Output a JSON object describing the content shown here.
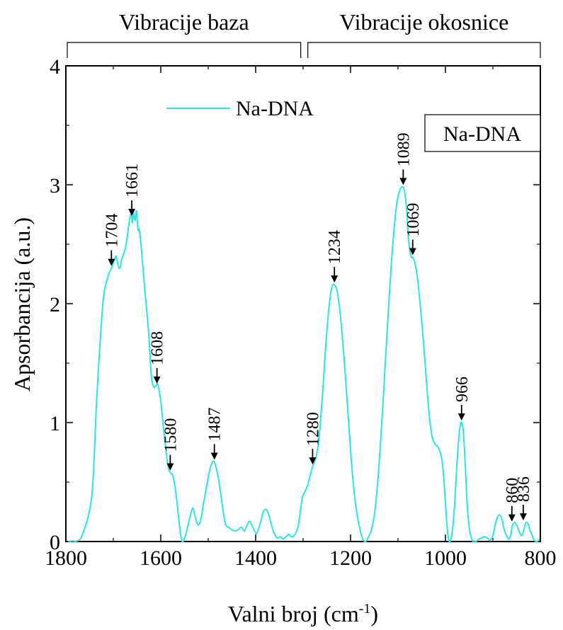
{
  "chart_data": {
    "type": "line",
    "xlabel": "Valni broj (cm",
    "xlabel_sup": "-1",
    "xlabel_close": ")",
    "ylabel": "Apsorbancija (a.u.)",
    "xlim": [
      1800,
      800
    ],
    "ylim": [
      0,
      4
    ],
    "x_ticks": [
      1800,
      1600,
      1400,
      1200,
      1000,
      800
    ],
    "y_ticks": [
      0,
      1,
      2,
      3,
      4
    ],
    "x_tick_labels": [
      "1800",
      "1600",
      "1400",
      "1200",
      "1000",
      "800"
    ],
    "y_tick_labels": [
      "0",
      "1",
      "2",
      "3",
      "4"
    ],
    "grid": false,
    "legend_position": "top-left",
    "legend": [
      {
        "name": "Na-DNA",
        "color": "#29e6e6"
      }
    ],
    "box_label": "Na-DNA",
    "groups": [
      {
        "label": "Vibracije baza",
        "from": 1800,
        "to": 1305
      },
      {
        "label": "Vibracije okosnice",
        "from": 1290,
        "to": 800
      }
    ],
    "series": [
      {
        "name": "Na-DNA",
        "color": "#29e6e6",
        "x": [
          1795,
          1780,
          1765,
          1745,
          1735,
          1722,
          1712,
          1706,
          1702,
          1698,
          1694,
          1690,
          1686,
          1682,
          1678,
          1674,
          1670,
          1666,
          1662,
          1660,
          1657,
          1654,
          1651,
          1648,
          1645,
          1640,
          1635,
          1630,
          1625,
          1620,
          1615,
          1610,
          1606,
          1600,
          1595,
          1590,
          1585,
          1580,
          1575,
          1570,
          1565,
          1560,
          1555,
          1548,
          1540,
          1533,
          1528,
          1522,
          1516,
          1510,
          1504,
          1498,
          1492,
          1487,
          1483,
          1478,
          1473,
          1468,
          1463,
          1457,
          1450,
          1443,
          1437,
          1430,
          1424,
          1419,
          1413,
          1406,
          1398,
          1390,
          1384,
          1378,
          1372,
          1366,
          1360,
          1354,
          1348,
          1342,
          1336,
          1330,
          1324,
          1317,
          1310,
          1302,
          1296,
          1290,
          1285,
          1280,
          1276,
          1272,
          1268,
          1264,
          1258,
          1252,
          1246,
          1240,
          1234,
          1228,
          1222,
          1216,
          1210,
          1204,
          1198,
          1192,
          1186,
          1180,
          1174,
          1168,
          1162,
          1156,
          1150,
          1144,
          1138,
          1132,
          1126,
          1120,
          1114,
          1108,
          1102,
          1096,
          1092,
          1089,
          1086,
          1082,
          1078,
          1073,
          1069,
          1064,
          1058,
          1052,
          1046,
          1040,
          1034,
          1028,
          1022,
          1016,
          1012,
          1008,
          1004,
          1000,
          996,
          992,
          988,
          984,
          980,
          976,
          972,
          969,
          966,
          963,
          960,
          957,
          954,
          950,
          946,
          942,
          936,
          930,
          924,
          918,
          912,
          906,
          900,
          894,
          888,
          882,
          876,
          870,
          866,
          862,
          860,
          857,
          854,
          850,
          846,
          842,
          839,
          836,
          833,
          830,
          826,
          822,
          818,
          814,
          810,
          806,
          802
        ],
        "y": [
          0,
          0,
          0.06,
          0.4,
          1.2,
          2.0,
          2.22,
          2.28,
          2.32,
          2.36,
          2.4,
          2.32,
          2.3,
          2.38,
          2.42,
          2.48,
          2.58,
          2.7,
          2.76,
          2.68,
          2.76,
          2.7,
          2.78,
          2.62,
          2.62,
          2.42,
          2.18,
          1.96,
          1.72,
          1.4,
          1.3,
          1.31,
          1.32,
          1.18,
          0.98,
          0.8,
          0.64,
          0.58,
          0.56,
          0.46,
          0.3,
          0.12,
          0,
          0.05,
          0.18,
          0.28,
          0.22,
          0.14,
          0.18,
          0.32,
          0.45,
          0.58,
          0.66,
          0.67,
          0.62,
          0.52,
          0.38,
          0.24,
          0.14,
          0.12,
          0.1,
          0.09,
          0.1,
          0.12,
          0.09,
          0.13,
          0.17,
          0.12,
          0.07,
          0.16,
          0.25,
          0.27,
          0.22,
          0.13,
          0.06,
          0.03,
          0.04,
          0.02,
          0.04,
          0.06,
          0.04,
          0.06,
          0.14,
          0.36,
          0.42,
          0.48,
          0.56,
          0.63,
          0.67,
          0.72,
          0.82,
          0.98,
          1.3,
          1.66,
          1.95,
          2.13,
          2.16,
          2.1,
          1.92,
          1.66,
          1.34,
          1.0,
          0.66,
          0.4,
          0.22,
          0.1,
          0.02,
          0,
          0.04,
          0.1,
          0.22,
          0.44,
          0.76,
          1.14,
          1.56,
          1.96,
          2.34,
          2.64,
          2.86,
          2.96,
          2.98,
          2.98,
          2.94,
          2.8,
          2.55,
          2.4,
          2.39,
          2.34,
          2.18,
          1.94,
          1.66,
          1.34,
          1.06,
          0.88,
          0.82,
          0.8,
          0.76,
          0.7,
          0.56,
          0.32,
          0.1,
          0,
          0.03,
          0.14,
          0.36,
          0.64,
          0.86,
          0.98,
          1.0,
          0.95,
          0.78,
          0.54,
          0.3,
          0.12,
          0.04,
          0,
          0,
          0.02,
          0.03,
          0.04,
          0.03,
          0.01,
          0.05,
          0.16,
          0.22,
          0.2,
          0.1,
          0.04,
          0.02,
          0.06,
          0.12,
          0.15,
          0.16,
          0.14,
          0.1,
          0.06,
          0.05,
          0.08,
          0.13,
          0.16,
          0.15,
          0.1,
          0.06,
          0.02,
          0,
          0,
          0.02
        ]
      }
    ],
    "annotations": [
      {
        "label": "1704",
        "x": 1704,
        "y": 2.3
      },
      {
        "label": "1661",
        "x": 1661,
        "y": 2.72
      },
      {
        "label": "1608",
        "x": 1608,
        "y": 1.31
      },
      {
        "label": "1580",
        "x": 1580,
        "y": 0.58
      },
      {
        "label": "1487",
        "x": 1487,
        "y": 0.67
      },
      {
        "label": "1280",
        "x": 1280,
        "y": 0.63
      },
      {
        "label": "1234",
        "x": 1234,
        "y": 2.16
      },
      {
        "label": "1089",
        "x": 1089,
        "y": 2.98
      },
      {
        "label": "1069",
        "x": 1069,
        "y": 2.39
      },
      {
        "label": "966",
        "x": 966,
        "y": 1.0
      },
      {
        "label": "860",
        "x": 860,
        "y": 0.15
      },
      {
        "label": "836",
        "x": 836,
        "y": 0.16
      }
    ]
  }
}
